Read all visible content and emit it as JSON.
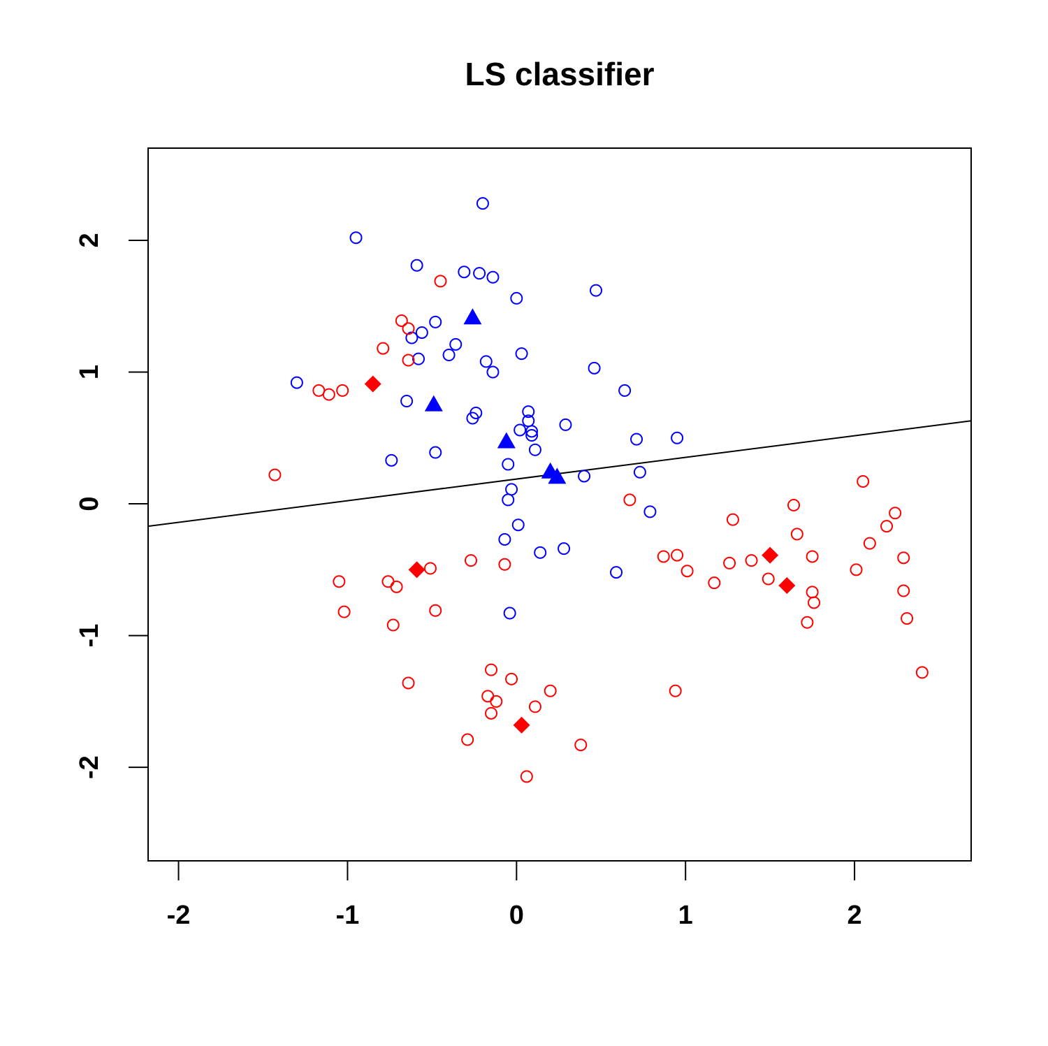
{
  "chart_data": {
    "type": "scatter",
    "title": "LS classifier",
    "xlim": [
      -2.18,
      2.69
    ],
    "ylim": [
      -2.71,
      2.7
    ],
    "xticks": [
      -2,
      -1,
      0,
      1,
      2
    ],
    "yticks": [
      -2,
      -1,
      0,
      1,
      2
    ],
    "series": [
      {
        "color": "#0000ff",
        "marker": "circle",
        "x": [
          -0.2,
          -0.95,
          -0.59,
          -0.31,
          -0.22,
          -0.14,
          0.47,
          0.0,
          -0.48,
          -0.56,
          -0.62,
          -0.36,
          -0.4,
          0.03,
          -0.58,
          -0.18,
          -0.14,
          0.46,
          -1.3,
          -0.65,
          0.64,
          0.07,
          -0.24,
          -0.26,
          0.07,
          0.29,
          0.02,
          0.09,
          0.09,
          0.71,
          0.95,
          0.11,
          -0.48,
          -0.74,
          -0.05,
          0.73,
          0.4,
          -0.03,
          -0.05,
          0.79,
          0.01,
          -0.07,
          0.28,
          0.14,
          0.59,
          -0.04
        ],
        "y": [
          2.28,
          2.02,
          1.81,
          1.76,
          1.75,
          1.72,
          1.62,
          1.56,
          1.38,
          1.3,
          1.26,
          1.21,
          1.13,
          1.14,
          1.1,
          1.08,
          1.0,
          1.03,
          0.92,
          0.78,
          0.86,
          0.7,
          0.69,
          0.65,
          0.63,
          0.6,
          0.56,
          0.55,
          0.52,
          0.49,
          0.5,
          0.41,
          0.39,
          0.33,
          0.3,
          0.24,
          0.21,
          0.11,
          0.03,
          -0.06,
          -0.16,
          -0.27,
          -0.34,
          -0.37,
          -0.52,
          -0.83
        ]
      },
      {
        "color": "#ff0000",
        "marker": "circle",
        "x": [
          -0.45,
          -0.68,
          -0.64,
          -0.79,
          -0.64,
          -1.17,
          -1.11,
          -1.03,
          -1.43,
          0.67,
          1.64,
          2.05,
          2.24,
          1.28,
          2.19,
          1.66,
          2.09,
          0.87,
          0.95,
          1.75,
          2.29,
          -0.27,
          1.39,
          1.26,
          -0.51,
          -0.07,
          1.01,
          2.01,
          -1.05,
          -0.76,
          -0.71,
          1.17,
          1.49,
          1.75,
          2.29,
          1.76,
          -1.02,
          -0.48,
          -0.73,
          2.31,
          1.72,
          -0.15,
          -0.03,
          -0.64,
          2.4,
          0.2,
          0.94,
          -0.17,
          -0.12,
          0.11,
          -0.15,
          -0.29,
          0.38,
          0.06
        ],
        "y": [
          1.69,
          1.39,
          1.33,
          1.18,
          1.09,
          0.86,
          0.83,
          0.86,
          0.22,
          0.03,
          -0.01,
          0.17,
          -0.07,
          -0.12,
          -0.17,
          -0.23,
          -0.3,
          -0.4,
          -0.39,
          -0.4,
          -0.41,
          -0.43,
          -0.43,
          -0.45,
          -0.49,
          -0.46,
          -0.51,
          -0.5,
          -0.59,
          -0.59,
          -0.63,
          -0.6,
          -0.57,
          -0.67,
          -0.66,
          -0.75,
          -0.82,
          -0.81,
          -0.92,
          -0.87,
          -0.9,
          -1.26,
          -1.33,
          -1.36,
          -1.28,
          -1.42,
          -1.42,
          -1.46,
          -1.5,
          -1.54,
          -1.59,
          -1.79,
          -1.83,
          -2.07
        ]
      },
      {
        "color": "#0000ff",
        "marker": "triangle",
        "x": [
          -0.26,
          -0.49,
          -0.06,
          0.2,
          0.24
        ],
        "y": [
          1.41,
          0.75,
          0.47,
          0.24,
          0.2
        ]
      },
      {
        "color": "#ff0000",
        "marker": "diamond",
        "x": [
          -0.85,
          -0.59,
          1.5,
          1.6,
          0.03
        ],
        "y": [
          0.91,
          -0.5,
          -0.39,
          -0.62,
          -1.68
        ]
      }
    ],
    "lines": [
      {
        "color": "#000000",
        "x": [
          -2.18,
          2.69
        ],
        "y": [
          -0.17,
          0.63
        ]
      }
    ]
  }
}
